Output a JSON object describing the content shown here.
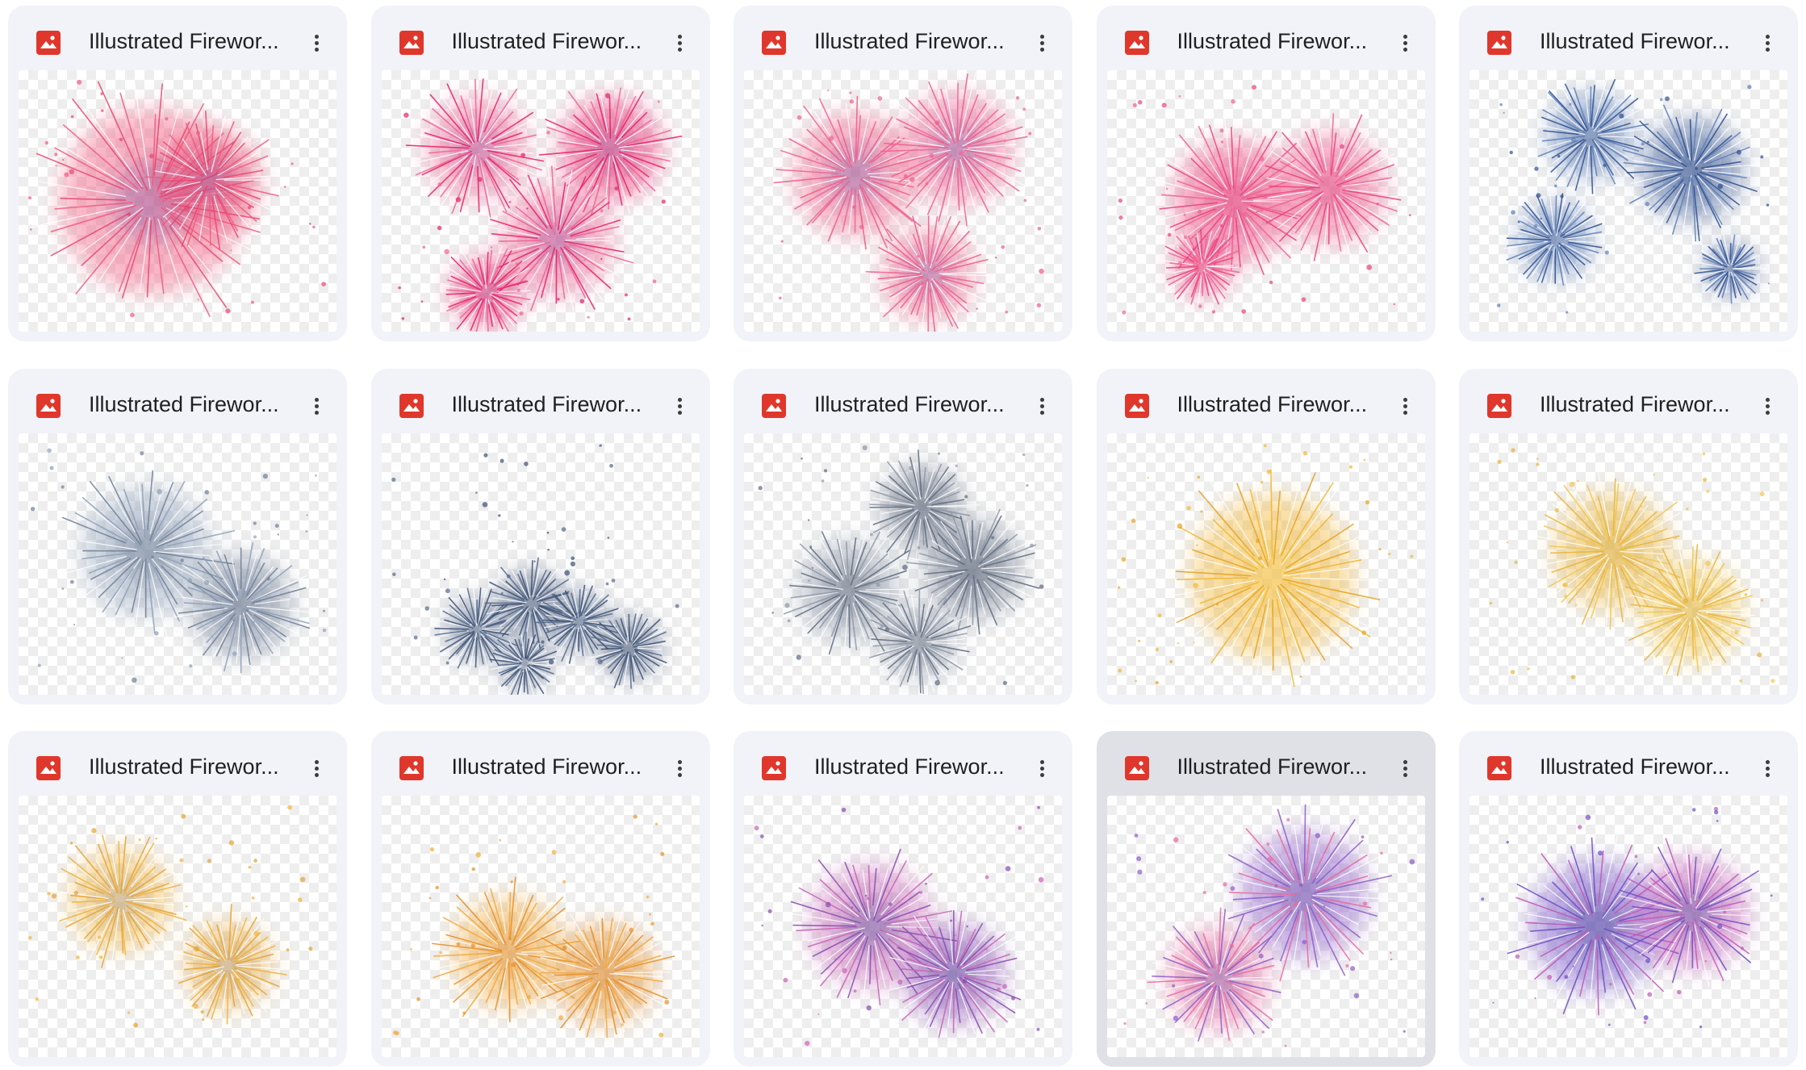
{
  "files": [
    {
      "name": "Illustrated Firewor...",
      "icon": "image-file-icon",
      "colors": [
        "#f25a7e",
        "#e8466f"
      ],
      "glow": "#7a4a9a",
      "bursts": [
        [
          0.42,
          0.5,
          0.36
        ],
        [
          0.6,
          0.42,
          0.2
        ]
      ]
    },
    {
      "name": "Illustrated Firewor...",
      "icon": "image-file-icon",
      "colors": [
        "#f06292",
        "#e91e63"
      ],
      "glow": "#8a3b8f",
      "bursts": [
        [
          0.3,
          0.3,
          0.2
        ],
        [
          0.72,
          0.3,
          0.2
        ],
        [
          0.55,
          0.65,
          0.22
        ],
        [
          0.33,
          0.85,
          0.14
        ]
      ]
    },
    {
      "name": "Illustrated Firewor...",
      "icon": "image-file-icon",
      "colors": [
        "#ef5b86",
        "#f06292"
      ],
      "glow": "#6a4c9c",
      "bursts": [
        [
          0.35,
          0.4,
          0.24
        ],
        [
          0.67,
          0.3,
          0.22
        ],
        [
          0.58,
          0.78,
          0.18
        ]
      ]
    },
    {
      "name": "Illustrated Firewor...",
      "icon": "image-file-icon",
      "colors": [
        "#ec407a",
        "#f06292"
      ],
      "glow": "#d81b60",
      "bursts": [
        [
          0.4,
          0.5,
          0.24
        ],
        [
          0.7,
          0.45,
          0.22
        ],
        [
          0.3,
          0.75,
          0.12
        ]
      ]
    },
    {
      "name": "Illustrated Firewor...",
      "icon": "image-file-icon",
      "colors": [
        "#5d7fb8",
        "#2f4f8f"
      ],
      "glow": "#1e3a78",
      "bursts": [
        [
          0.38,
          0.25,
          0.17
        ],
        [
          0.7,
          0.38,
          0.2
        ],
        [
          0.27,
          0.65,
          0.15
        ],
        [
          0.82,
          0.76,
          0.1
        ]
      ]
    },
    {
      "name": "Illustrated Firewor...",
      "icon": "image-file-icon",
      "colors": [
        "#8da0b8",
        "#6f7f96"
      ],
      "glow": "#4b5d78",
      "bursts": [
        [
          0.4,
          0.45,
          0.25
        ],
        [
          0.7,
          0.66,
          0.2
        ]
      ]
    },
    {
      "name": "Illustrated Firewor...",
      "icon": "image-file-icon",
      "colors": [
        "#54698a",
        "#3c4f72"
      ],
      "glow": "#2e4468",
      "bursts": [
        [
          0.3,
          0.75,
          0.12
        ],
        [
          0.47,
          0.65,
          0.13
        ],
        [
          0.62,
          0.72,
          0.12
        ],
        [
          0.78,
          0.82,
          0.12
        ],
        [
          0.45,
          0.88,
          0.1
        ]
      ]
    },
    {
      "name": "Illustrated Firewor...",
      "icon": "image-file-icon",
      "colors": [
        "#5e6a7e",
        "#8e98a8"
      ],
      "glow": "#2f3a50",
      "bursts": [
        [
          0.56,
          0.28,
          0.16
        ],
        [
          0.33,
          0.6,
          0.2
        ],
        [
          0.72,
          0.52,
          0.19
        ],
        [
          0.55,
          0.8,
          0.15
        ]
      ]
    },
    {
      "name": "Illustrated Firewor...",
      "icon": "image-file-icon",
      "colors": [
        "#f2b630",
        "#e8a21f"
      ],
      "glow": "#f5c542",
      "bursts": [
        [
          0.52,
          0.55,
          0.32
        ]
      ]
    },
    {
      "name": "Illustrated Firewor...",
      "icon": "image-file-icon",
      "colors": [
        "#e8b43a",
        "#f1c64e"
      ],
      "glow": "#d4a020",
      "bursts": [
        [
          0.45,
          0.45,
          0.23
        ],
        [
          0.7,
          0.68,
          0.2
        ]
      ]
    },
    {
      "name": "Illustrated Firewor...",
      "icon": "image-file-icon",
      "colors": [
        "#f0b33d",
        "#e6a330"
      ],
      "glow": "#8e8e9e",
      "bursts": [
        [
          0.32,
          0.4,
          0.2
        ],
        [
          0.66,
          0.65,
          0.17
        ]
      ]
    },
    {
      "name": "Illustrated Firewor...",
      "icon": "image-file-icon",
      "colors": [
        "#f2a93b",
        "#e58e28"
      ],
      "glow": "#d47b20",
      "bursts": [
        [
          0.4,
          0.6,
          0.22
        ],
        [
          0.7,
          0.68,
          0.2
        ]
      ]
    },
    {
      "name": "Illustrated Firewor...",
      "icon": "image-file-icon",
      "colors": [
        "#c763b6",
        "#8a4ab2"
      ],
      "glow": "#3e3a8a",
      "bursts": [
        [
          0.4,
          0.5,
          0.24
        ],
        [
          0.66,
          0.68,
          0.2
        ]
      ]
    },
    {
      "name": "Illustrated Firewor...",
      "icon": "image-file-icon",
      "colors": [
        "#8e5bc8",
        "#e86aa0"
      ],
      "glow": "#5a3c9c",
      "bursts": [
        [
          0.62,
          0.38,
          0.25
        ],
        [
          0.35,
          0.7,
          0.2
        ]
      ],
      "selected": true
    },
    {
      "name": "Illustrated Firewor...",
      "icon": "image-file-icon",
      "colors": [
        "#6f4bc4",
        "#c158b8"
      ],
      "glow": "#2e2a8a",
      "bursts": [
        [
          0.4,
          0.5,
          0.26
        ],
        [
          0.7,
          0.45,
          0.22
        ]
      ]
    }
  ]
}
